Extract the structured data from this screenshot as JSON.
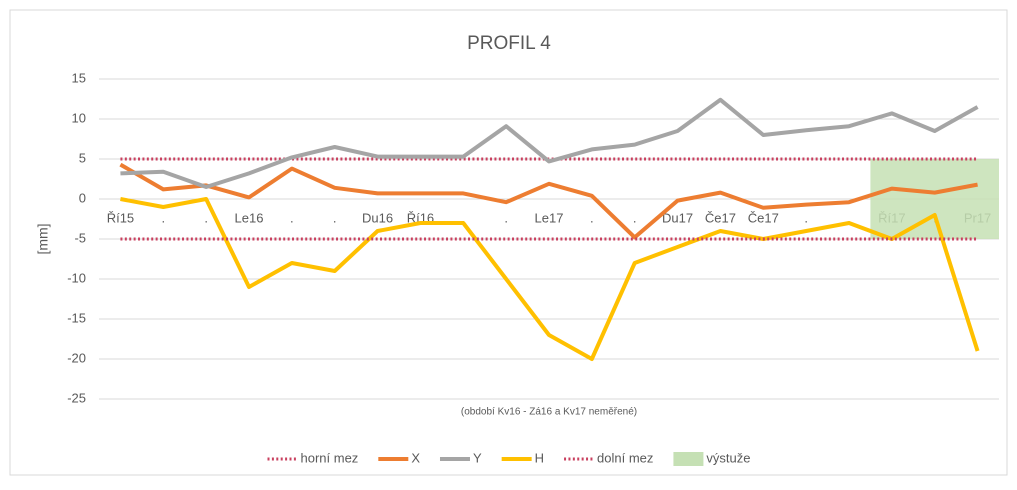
{
  "chart_data": {
    "type": "line",
    "title": "PROFIL 4",
    "y_label": "[mm]",
    "annotation": "(období Kv16 - Zá16 a Kv17 neměřené)",
    "categories": [
      "Ří15",
      ".",
      ".",
      "Le16",
      ".",
      ".",
      "Du16",
      "Ří16",
      ".",
      ".",
      "Le17",
      ".",
      ".",
      "Du17",
      "Če17",
      "Če17",
      ".",
      ".",
      "Ří17",
      ".",
      "Pr17"
    ],
    "ylim": [
      -25,
      15
    ],
    "yticks": [
      -25,
      -20,
      -15,
      -10,
      -5,
      0,
      5,
      10,
      15
    ],
    "grid": true,
    "legend": "bottom",
    "series": [
      {
        "name": "horní mez",
        "color": "#c9405f",
        "dotted": true,
        "values": [
          5,
          5,
          5,
          5,
          5,
          5,
          5,
          5,
          5,
          5,
          5,
          5,
          5,
          5,
          5,
          5,
          5,
          5,
          5,
          5,
          5
        ]
      },
      {
        "name": "X",
        "color": "#ed7d31",
        "values": [
          4.3,
          1.2,
          1.7,
          0.2,
          3.8,
          1.4,
          0.7,
          0.7,
          0.7,
          -0.4,
          1.9,
          0.4,
          -4.8,
          -0.2,
          0.8,
          -1.1,
          -0.7,
          -0.4,
          1.3,
          0.8,
          1.8
        ]
      },
      {
        "name": "Y",
        "color": "#a5a5a5",
        "values": [
          3.2,
          3.4,
          1.5,
          3.2,
          5.2,
          6.5,
          5.3,
          5.3,
          5.3,
          9.1,
          4.7,
          6.2,
          6.8,
          8.5,
          12.4,
          8.0,
          8.6,
          9.1,
          10.7,
          8.5,
          11.5
        ]
      },
      {
        "name": "H",
        "color": "#ffc000",
        "values": [
          0,
          -1,
          0,
          -11,
          -8,
          -9,
          -4,
          -3,
          -3,
          -10,
          -17,
          -20,
          -8,
          -6,
          -4,
          -5,
          -4,
          -3,
          -5,
          -2,
          -19
        ]
      },
      {
        "name": "dolní mez",
        "color": "#c9405f",
        "dotted": true,
        "values": [
          -5,
          -5,
          -5,
          -5,
          -5,
          -5,
          -5,
          -5,
          -5,
          -5,
          -5,
          -5,
          -5,
          -5,
          -5,
          -5,
          -5,
          -5,
          -5,
          -5,
          -5
        ]
      },
      {
        "name": "výstuže",
        "color": "#c5e0b4",
        "area": true,
        "values": [
          null,
          null,
          null,
          null,
          null,
          null,
          null,
          null,
          null,
          null,
          null,
          null,
          null,
          null,
          null,
          null,
          null,
          null,
          5,
          5,
          5
        ],
        "low_values": [
          null,
          null,
          null,
          null,
          null,
          null,
          null,
          null,
          null,
          null,
          null,
          null,
          null,
          null,
          null,
          null,
          null,
          null,
          -5,
          -5,
          -5
        ]
      }
    ]
  }
}
